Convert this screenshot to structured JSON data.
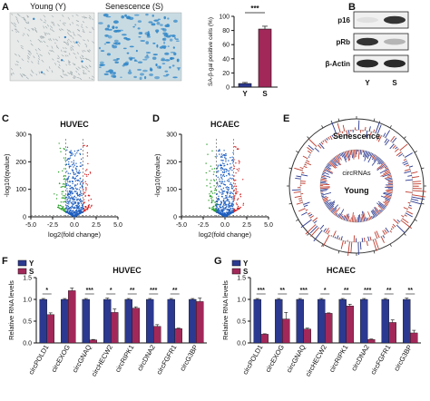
{
  "panel_labels": {
    "A": "A",
    "B": "B",
    "C": "C",
    "D": "D",
    "E": "E",
    "F": "F",
    "G": "G"
  },
  "panelA": {
    "img_young_label": "Young (Y)",
    "img_sen_label": "Senescence (S)",
    "colors": {
      "young_bg": "#e8eaea",
      "sen_bg": "#c9dbe2",
      "stain": "#2f86c8"
    }
  },
  "panelB": {
    "bands": [
      "p16",
      "pRb",
      "β-Actin"
    ],
    "lanes": [
      "Y",
      "S"
    ],
    "band_intensity": {
      "p16": [
        0.05,
        0.85
      ],
      "pRb": [
        0.85,
        0.25
      ],
      "β-Actin": [
        0.9,
        0.9
      ]
    }
  },
  "panelE": {
    "outer_label": "Senescence",
    "middle_label": "circRNAs",
    "inner_label": "Young"
  },
  "colors": {
    "Y": "#2b3990",
    "S": "#a3285a",
    "volcano_up": "#d62728",
    "volcano_down": "#2ca02c",
    "volcano_ns": "#1f5fbf"
  },
  "chart_data": [
    {
      "id": "A-bar",
      "type": "bar",
      "categories": [
        "Y",
        "S"
      ],
      "values": [
        5,
        82
      ],
      "errors": [
        1.5,
        4
      ],
      "ylabel": "SA-β-gal positive cells (%)",
      "ylim": [
        0,
        100
      ],
      "yticks": [
        "0",
        "20",
        "40",
        "60",
        "80",
        "100"
      ],
      "annotation": "***"
    },
    {
      "id": "C-volcano",
      "type": "scatter",
      "title": "HUVEC",
      "xlabel": "log2(fold change)",
      "ylabel": "-log10(qvalue)",
      "xlim": [
        -5,
        5
      ],
      "ylim": [
        0,
        300
      ],
      "xticks": [
        "-5.0",
        "-2.5",
        "0.0",
        "2.5",
        "5.0"
      ],
      "yticks": [
        "0",
        "100",
        "200",
        "300"
      ]
    },
    {
      "id": "D-volcano",
      "type": "scatter",
      "title": "HCAEC",
      "xlabel": "log2(fold change)",
      "ylabel": "-log10(qvalue)",
      "xlim": [
        -5,
        5
      ],
      "ylim": [
        0,
        300
      ],
      "xticks": [
        "-5.0",
        "-2.5",
        "0.0",
        "2.5",
        "5.0"
      ],
      "yticks": [
        "0",
        "100",
        "200",
        "300"
      ]
    },
    {
      "id": "F-bar",
      "type": "bar",
      "title": "HUVEC",
      "ylabel": "Relative RNA levels",
      "ylim": [
        0,
        1.5
      ],
      "yticks": [
        "0.0",
        "0.5",
        "1.0",
        "1.5"
      ],
      "categories": [
        "circPOLD1",
        "circEXOG",
        "circGNAQ",
        "circHECW2",
        "circRIPK1",
        "circDNA2",
        "circFGFR1",
        "circG3BP"
      ],
      "series": [
        {
          "name": "Y",
          "values": [
            1.0,
            1.0,
            1.0,
            1.0,
            1.0,
            1.0,
            1.0,
            1.0
          ],
          "errors": [
            0.02,
            0.02,
            0.02,
            0.03,
            0.02,
            0.02,
            0.02,
            0.02
          ]
        },
        {
          "name": "S",
          "values": [
            0.65,
            1.2,
            0.07,
            0.7,
            0.8,
            0.38,
            0.33,
            0.95
          ],
          "errors": [
            0.04,
            0.06,
            0.01,
            0.08,
            0.03,
            0.04,
            0.01,
            0.08
          ]
        }
      ],
      "significance": [
        "*",
        "",
        "***",
        "*",
        "**",
        "***",
        "**",
        ""
      ]
    },
    {
      "id": "G-bar",
      "type": "bar",
      "title": "HCAEC",
      "ylabel": "Relative RNA levels",
      "ylim": [
        0,
        1.5
      ],
      "yticks": [
        "0.0",
        "0.5",
        "1.0",
        "1.5"
      ],
      "categories": [
        "circPOLD1",
        "circEXOG",
        "circGNAQ",
        "circHECW2",
        "circRIPK1",
        "circDNA2",
        "circFGFR1",
        "circG3BP"
      ],
      "series": [
        {
          "name": "Y",
          "values": [
            1.0,
            1.0,
            1.0,
            1.0,
            1.0,
            1.0,
            1.0,
            1.0
          ],
          "errors": [
            0.02,
            0.02,
            0.02,
            0.02,
            0.02,
            0.02,
            0.02,
            0.03
          ]
        },
        {
          "name": "S",
          "values": [
            0.2,
            0.55,
            0.32,
            0.68,
            0.85,
            0.08,
            0.47,
            0.23
          ],
          "errors": [
            0.01,
            0.15,
            0.02,
            0.01,
            0.04,
            0.01,
            0.06,
            0.06
          ]
        }
      ],
      "significance": [
        "***",
        "**",
        "***",
        "*",
        "**",
        "***",
        "**",
        "**"
      ]
    }
  ]
}
